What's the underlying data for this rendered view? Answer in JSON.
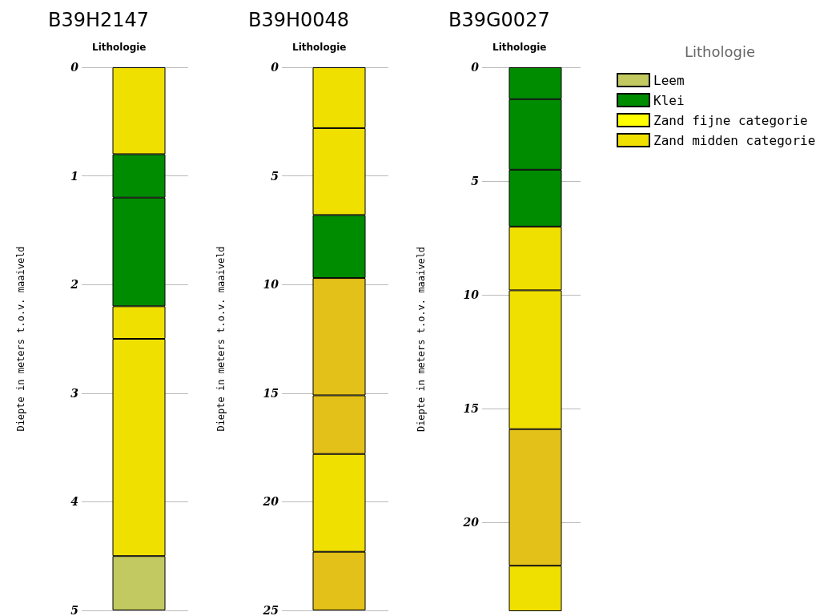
{
  "chart_data": [
    {
      "type": "bar",
      "title": "B39H2147",
      "subtitle": "Lithologie",
      "ylabel": "Diepte in meters t.o.v. maaiveld",
      "categories": [
        null
      ],
      "stacked": true,
      "ylim": [
        5,
        0
      ],
      "yticks": [
        0,
        1,
        2,
        3,
        4,
        5
      ],
      "grid": "y",
      "tick_labels": "y",
      "series": [
        {
          "color": "#f0e000",
          "values": [
            0.8
          ]
        },
        {
          "color": "#008c00",
          "values": [
            0.4
          ]
        },
        {
          "color": "#008c00",
          "values": [
            1.0
          ]
        },
        {
          "color": "#f0e000",
          "values": [
            0.3
          ]
        },
        {
          "color": "#f0e000",
          "values": [
            2.0
          ]
        },
        {
          "color": "#c2c960",
          "values": [
            0.5
          ]
        }
      ]
    },
    {
      "type": "bar",
      "title": "B39H0048",
      "subtitle": "Lithologie",
      "ylabel": "Diepte in meters t.o.v. maaiveld",
      "categories": [
        null
      ],
      "stacked": true,
      "ylim": [
        25,
        0
      ],
      "yticks": [
        0,
        5,
        10,
        15,
        20,
        25
      ],
      "grid": "y",
      "tick_labels": "y",
      "series": [
        {
          "color": "#f0e000",
          "values": [
            2.8
          ]
        },
        {
          "color": "#f0e000",
          "values": [
            4.0
          ]
        },
        {
          "color": "#008c00",
          "values": [
            2.9
          ]
        },
        {
          "color": "#e3c118",
          "values": [
            5.4
          ]
        },
        {
          "color": "#e3c118",
          "values": [
            2.7
          ]
        },
        {
          "color": "#f0e000",
          "values": [
            4.5
          ]
        },
        {
          "color": "#e3c118",
          "values": [
            2.7
          ]
        }
      ]
    },
    {
      "type": "bar",
      "title": "B39G0027",
      "subtitle": "Lithologie",
      "ylabel": "Diepte in meters t.o.v. maaiveld",
      "categories": [
        null
      ],
      "stacked": true,
      "ylim": [
        23.9,
        0
      ],
      "yticks": [
        0,
        5,
        10,
        15,
        20
      ],
      "grid": "y",
      "tick_labels": "y",
      "series": [
        {
          "color": "#008c00",
          "values": [
            1.4
          ]
        },
        {
          "color": "#008c00",
          "values": [
            3.1
          ]
        },
        {
          "color": "#008c00",
          "values": [
            2.5
          ]
        },
        {
          "color": "#f0e000",
          "values": [
            2.8
          ]
        },
        {
          "color": "#f0e000",
          "values": [
            6.1
          ]
        },
        {
          "color": "#e3c118",
          "values": [
            6.0
          ]
        },
        {
          "color": "#f0e000",
          "values": [
            2.0
          ]
        }
      ]
    },
    {
      "type": "other",
      "legend_title": "Lithologie",
      "legend": "top right",
      "series": [
        {
          "name": "Leem",
          "color": "#c2c960"
        },
        {
          "name": "Klei",
          "color": "#008c00"
        },
        {
          "name": "Zand fijne categorie",
          "color": "#ffff00"
        },
        {
          "name": "Zand midden categorie",
          "color": "#f0e000"
        }
      ]
    }
  ]
}
